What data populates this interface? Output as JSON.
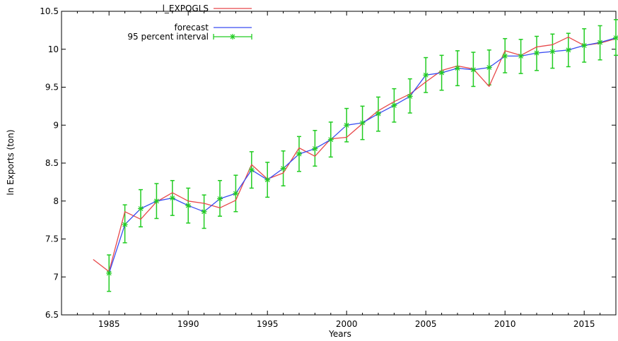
{
  "chart_data": {
    "type": "line",
    "xlabel": "Years",
    "ylabel": "ln Exports (ton)",
    "xlim": [
      1982,
      2017
    ],
    "ylim": [
      6.5,
      10.5
    ],
    "x_ticks": [
      1985,
      1990,
      1995,
      2000,
      2005,
      2010,
      2015
    ],
    "y_ticks": [
      6.5,
      7,
      7.5,
      8,
      8.5,
      9,
      9.5,
      10,
      10.5
    ],
    "grid": false,
    "legend_position": "top-left",
    "legend_labels": [
      "l_EXPQGLS",
      "forecast",
      "95 percent interval"
    ],
    "series": [
      {
        "name": "l_EXPQGLS",
        "color": "#e8484a",
        "x": [
          1984,
          1985,
          1986,
          1987,
          1988,
          1989,
          1990,
          1991,
          1992,
          1993,
          1994,
          1995,
          1996,
          1997,
          1998,
          1999,
          2000,
          2001,
          2002,
          2003,
          2004,
          2005,
          2006,
          2007,
          2008,
          2009,
          2010,
          2011,
          2012,
          2013,
          2014,
          2015,
          2016,
          2017
        ],
        "values": [
          7.23,
          7.07,
          7.86,
          7.76,
          7.99,
          8.11,
          8.0,
          7.97,
          7.91,
          8.01,
          8.48,
          8.29,
          8.37,
          8.7,
          8.59,
          8.82,
          8.84,
          9.02,
          9.19,
          9.31,
          9.41,
          9.57,
          9.72,
          9.78,
          9.74,
          9.51,
          9.98,
          9.92,
          10.03,
          10.06,
          10.16,
          10.05,
          10.08,
          10.14
        ]
      },
      {
        "name": "forecast",
        "color": "#3a4cf2",
        "x": [
          1985,
          1986,
          1987,
          1988,
          1989,
          1990,
          1991,
          1992,
          1993,
          1994,
          1995,
          1996,
          1997,
          1998,
          1999,
          2000,
          2001,
          2002,
          2003,
          2004,
          2005,
          2006,
          2007,
          2008,
          2009,
          2010,
          2011,
          2012,
          2013,
          2014,
          2015,
          2016,
          2017
        ],
        "values": [
          7.05,
          7.69,
          7.9,
          8.0,
          8.04,
          7.94,
          7.86,
          8.03,
          8.1,
          8.41,
          8.28,
          8.43,
          8.62,
          8.69,
          8.81,
          9.0,
          9.03,
          9.15,
          9.26,
          9.38,
          9.66,
          9.69,
          9.75,
          9.73,
          9.76,
          9.91,
          9.91,
          9.95,
          9.97,
          9.99,
          10.05,
          10.09,
          10.15
        ]
      }
    ],
    "interval": {
      "name": "95 percent interval",
      "color": "#22cc22",
      "x": [
        1985,
        1986,
        1987,
        1988,
        1989,
        1990,
        1991,
        1992,
        1993,
        1994,
        1995,
        1996,
        1997,
        1998,
        1999,
        2000,
        2001,
        2002,
        2003,
        2004,
        2005,
        2006,
        2007,
        2008,
        2009,
        2010,
        2011,
        2012,
        2013,
        2014,
        2015,
        2016,
        2017
      ],
      "lower": [
        6.81,
        7.45,
        7.66,
        7.77,
        7.81,
        7.71,
        7.64,
        7.8,
        7.86,
        8.17,
        8.05,
        8.2,
        8.39,
        8.46,
        8.58,
        8.78,
        8.81,
        8.92,
        9.04,
        9.16,
        9.43,
        9.46,
        9.52,
        9.51,
        9.53,
        9.69,
        9.68,
        9.72,
        9.75,
        9.77,
        9.83,
        9.86,
        9.92
      ],
      "upper": [
        7.29,
        7.95,
        8.15,
        8.23,
        8.27,
        8.17,
        8.08,
        8.27,
        8.34,
        8.65,
        8.51,
        8.66,
        8.85,
        8.93,
        9.04,
        9.22,
        9.25,
        9.37,
        9.48,
        9.61,
        9.89,
        9.92,
        9.98,
        9.96,
        9.99,
        10.14,
        10.13,
        10.17,
        10.2,
        10.21,
        10.27,
        10.31,
        10.39
      ]
    }
  }
}
